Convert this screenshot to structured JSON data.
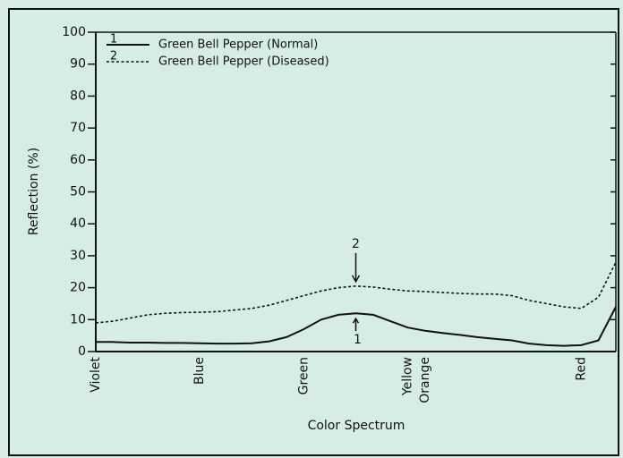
{
  "chart_data": {
    "type": "line",
    "xlabel": "Color Spectrum",
    "ylabel": "Reflection (%)",
    "categories": [
      "Violet",
      null,
      null,
      null,
      null,
      null,
      "Blue",
      null,
      null,
      null,
      null,
      null,
      "Green",
      null,
      null,
      null,
      null,
      null,
      "Yellow",
      "Orange",
      null,
      null,
      null,
      null,
      null,
      null,
      null,
      null,
      "Red",
      null,
      null
    ],
    "series": [
      {
        "name": "Green Bell Pepper (Normal)",
        "label": "1",
        "color": "#111111",
        "dash": false,
        "values": [
          3.0,
          3.0,
          2.8,
          2.8,
          2.7,
          2.7,
          2.6,
          2.5,
          2.5,
          2.6,
          3.2,
          4.5,
          7.0,
          10.0,
          11.5,
          12.0,
          11.5,
          9.5,
          7.5,
          6.5,
          5.8,
          5.2,
          4.5,
          4.0,
          3.5,
          2.5,
          2.0,
          1.8,
          2.0,
          3.5,
          14.0
        ]
      },
      {
        "name": "Green Bell Pepper (Diseased)",
        "label": "2",
        "color": "#111111",
        "dash": true,
        "values": [
          9.0,
          9.5,
          10.5,
          11.5,
          12.0,
          12.2,
          12.3,
          12.5,
          13.0,
          13.5,
          14.5,
          16.0,
          17.5,
          19.0,
          20.0,
          20.5,
          20.2,
          19.5,
          19.0,
          18.8,
          18.5,
          18.2,
          18.0,
          18.0,
          17.5,
          16.0,
          15.0,
          14.0,
          13.5,
          17.0,
          28.0
        ]
      }
    ],
    "ylim": [
      0,
      100
    ],
    "yticks": [
      0,
      10,
      20,
      30,
      40,
      50,
      60,
      70,
      80,
      90,
      100
    ],
    "grid": false,
    "legend": "top-left"
  }
}
